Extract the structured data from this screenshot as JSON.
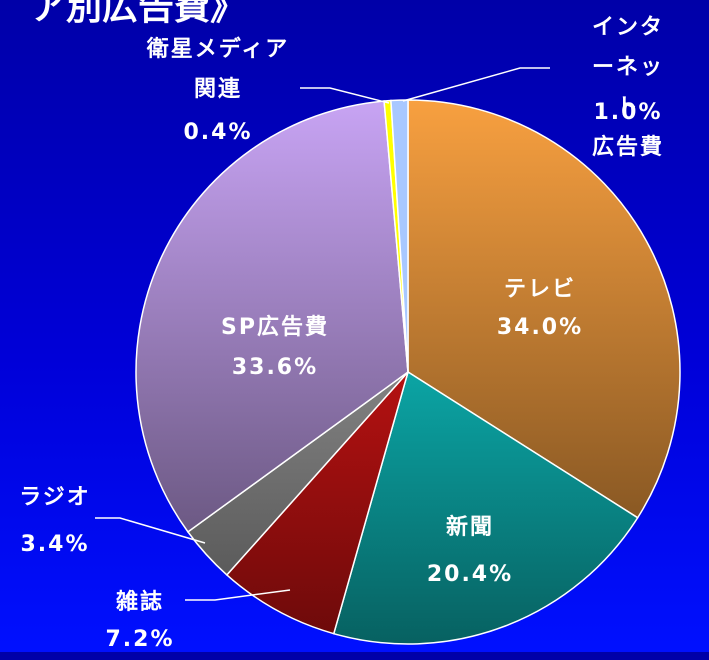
{
  "chart_data": {
    "type": "pie",
    "title": "ア別広告費》",
    "categories": [
      "テレビ",
      "新聞",
      "雑誌",
      "ラジオ",
      "SP広告費",
      "衛星メディア\n関連",
      "インターネット\n広告費"
    ],
    "values": [
      34.0,
      20.4,
      7.2,
      3.4,
      33.6,
      0.4,
      1.0
    ],
    "value_labels": [
      "34.0%",
      "20.4%",
      "7.2%",
      "3.4%",
      "33.6%",
      "0.4%",
      "1.0%"
    ],
    "colors": [
      "#f8a040",
      "#10e8e8",
      "#ff1818",
      "#b8b8b8",
      "#c8a4f4",
      "#ffff00",
      "#a8c8ff"
    ]
  }
}
